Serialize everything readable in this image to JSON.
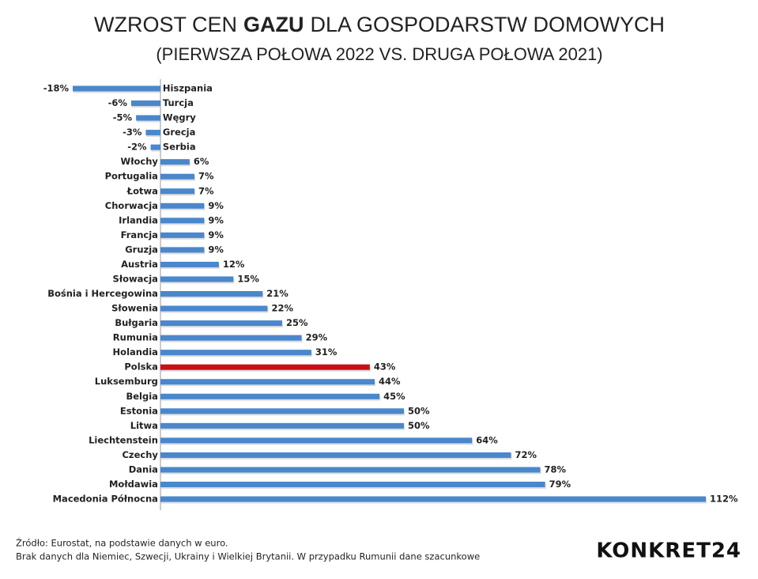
{
  "chart_data": {
    "type": "bar",
    "orientation": "horizontal",
    "title": [
      "WZROST CEN",
      "GAZU",
      "DLA GOSPODARSTW DOMOWYCH"
    ],
    "subtitle": "(PIERWSZA POŁOWA 2022 VS. DRUGA POŁOWA 2021)",
    "categories": [
      "Hiszpania",
      "Turcja",
      "Węgry",
      "Grecja",
      "Serbia",
      "Włochy",
      "Portugalia",
      "Łotwa",
      "Chorwacja",
      "Irlandia",
      "Francja",
      "Gruzja",
      "Austria",
      "Słowacja",
      "Bośnia i Hercegowina",
      "Słowenia",
      "Bułgaria",
      "Rumunia",
      "Holandia",
      "Polska",
      "Luksemburg",
      "Belgia",
      "Estonia",
      "Litwa",
      "Liechtenstein",
      "Czechy",
      "Dania",
      "Mołdawia",
      "Macedonia Północna"
    ],
    "values": [
      -18,
      -6,
      -5,
      -3,
      -2,
      6,
      7,
      7,
      9,
      9,
      9,
      9,
      12,
      15,
      21,
      22,
      25,
      29,
      31,
      43,
      44,
      45,
      50,
      50,
      64,
      72,
      78,
      79,
      112
    ],
    "value_labels": [
      "-18%",
      "-6%",
      "-5%",
      "-3%",
      "-2%",
      "6%",
      "7%",
      "7%",
      "9%",
      "9%",
      "9%",
      "9%",
      "12%",
      "15%",
      "21%",
      "22%",
      "25%",
      "29%",
      "31%",
      "43%",
      "44%",
      "45%",
      "50%",
      "50%",
      "64%",
      "72%",
      "78%",
      "79%",
      "112%"
    ],
    "colors": [
      "#4a87cc",
      "#4a87cc",
      "#4a87cc",
      "#4a87cc",
      "#4a87cc",
      "#4a87cc",
      "#4a87cc",
      "#4a87cc",
      "#4a87cc",
      "#4a87cc",
      "#4a87cc",
      "#4a87cc",
      "#4a87cc",
      "#4a87cc",
      "#4a87cc",
      "#4a87cc",
      "#4a87cc",
      "#4a87cc",
      "#4a87cc",
      "#c8101a",
      "#4a87cc",
      "#4a87cc",
      "#4a87cc",
      "#4a87cc",
      "#4a87cc",
      "#4a87cc",
      "#4a87cc",
      "#4a87cc",
      "#4a87cc"
    ],
    "notes": [
      "Źródło: Eurostat, na podstawie danych w euro.",
      "Brak danych dla Niemiec, Szwecji, Ukrainy i Wielkiej Brytanii. W przypadku Rumunii dane szacunkowe"
    ],
    "brand": "KONKRET24"
  }
}
